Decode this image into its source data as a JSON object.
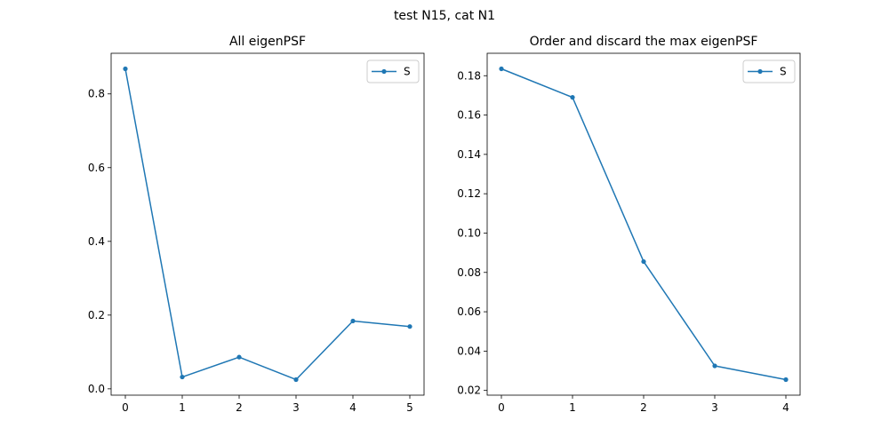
{
  "figure": {
    "suptitle": "test N15, cat N1",
    "line_color": "#1f77b4"
  },
  "chart_data": [
    {
      "type": "line",
      "title": "All eigenPSF",
      "xlabel": "",
      "ylabel": "",
      "x": [
        0,
        1,
        2,
        3,
        4,
        5
      ],
      "series": [
        {
          "name": "S",
          "values": [
            0.868,
            0.032,
            0.086,
            0.025,
            0.184,
            0.169
          ]
        }
      ],
      "xlim": [
        -0.25,
        5.25
      ],
      "ylim": [
        -0.0172,
        0.9102
      ],
      "xticks": [
        0,
        1,
        2,
        3,
        4,
        5
      ],
      "xtick_labels": [
        "0",
        "1",
        "2",
        "3",
        "4",
        "5"
      ],
      "yticks": [
        0.0,
        0.2,
        0.4,
        0.6,
        0.8
      ],
      "ytick_labels": [
        "0.0",
        "0.2",
        "0.4",
        "0.6",
        "0.8"
      ],
      "grid": false,
      "legend": "top-right",
      "marker": "dot"
    },
    {
      "type": "line",
      "title": "Order and discard the max eigenPSF",
      "xlabel": "",
      "ylabel": "",
      "x": [
        0,
        1,
        2,
        3,
        4
      ],
      "series": [
        {
          "name": "S",
          "values": [
            0.1835,
            0.169,
            0.0855,
            0.0325,
            0.0255
          ]
        }
      ],
      "xlim": [
        -0.2,
        4.2
      ],
      "ylim": [
        0.0176,
        0.1914
      ],
      "xticks": [
        0,
        1,
        2,
        3,
        4
      ],
      "xtick_labels": [
        "0",
        "1",
        "2",
        "3",
        "4"
      ],
      "yticks": [
        0.02,
        0.04,
        0.06,
        0.08,
        0.1,
        0.12,
        0.14,
        0.16,
        0.18
      ],
      "ytick_labels": [
        "0.02",
        "0.04",
        "0.06",
        "0.08",
        "0.10",
        "0.12",
        "0.14",
        "0.16",
        "0.18"
      ],
      "grid": false,
      "legend": "top-right",
      "marker": "dot"
    }
  ]
}
